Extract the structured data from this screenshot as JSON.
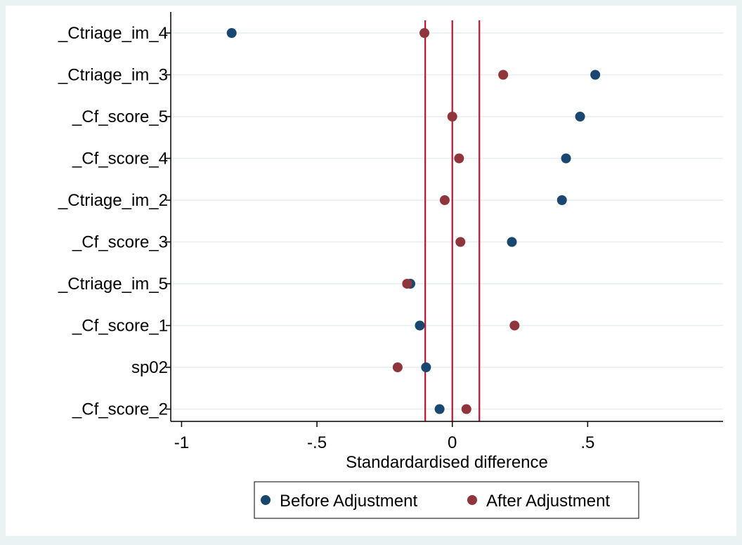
{
  "chart_data": {
    "type": "scatter",
    "xlabel": "Standardardised difference",
    "ylabel": "",
    "xlim": [
      -1.04,
      1.0
    ],
    "x_ticks": [
      -1,
      -0.5,
      0,
      0.5
    ],
    "x_tick_labels": [
      "-1",
      "-.5",
      "0",
      ".5"
    ],
    "grid": true,
    "legend_position": "bottom",
    "reference_lines": [
      -0.1,
      0,
      0.1
    ],
    "reference_line_color": "#c0112f",
    "categories": [
      "_Ctriage_im_4",
      "_Ctriage_im_3",
      "_Cf_score_5",
      "_Cf_score_4",
      "_Ctriage_im_2",
      "_Cf_score_3",
      "_Ctriage_im_5",
      "_Cf_score_1",
      "sp02",
      "_Cf_score_2"
    ],
    "series": [
      {
        "name": "Before Adjustment",
        "color": "#1a476f",
        "values": [
          -0.815,
          0.528,
          0.472,
          0.42,
          0.405,
          0.22,
          -0.155,
          -0.12,
          -0.097,
          -0.047
        ]
      },
      {
        "name": "After Adjustment",
        "color": "#90353b",
        "values": [
          -0.103,
          0.188,
          0.0,
          0.025,
          -0.028,
          0.03,
          -0.167,
          0.23,
          -0.202,
          0.052
        ]
      }
    ]
  }
}
